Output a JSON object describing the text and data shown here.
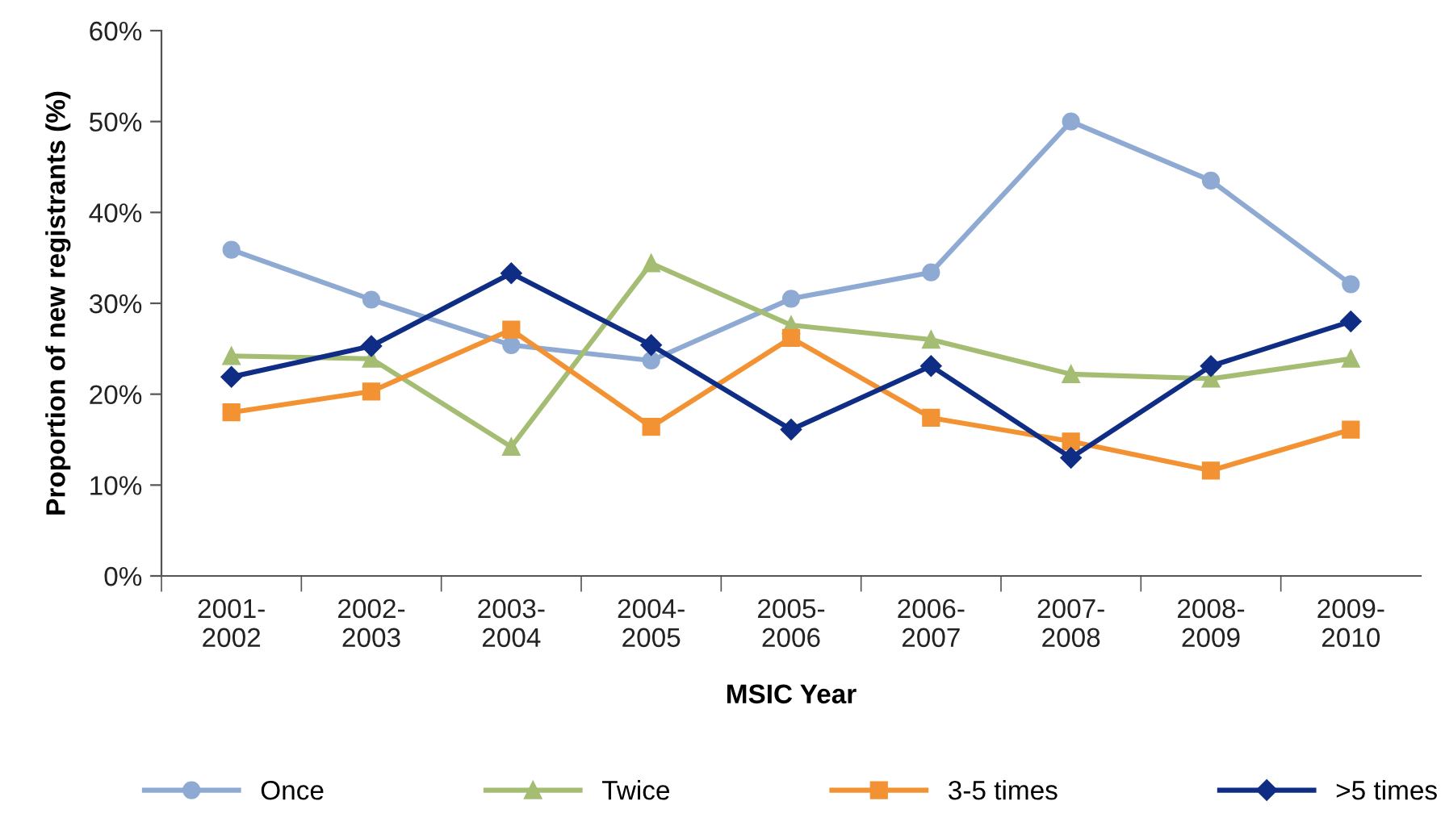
{
  "chart_data": {
    "type": "line",
    "xlabel": "MSIC Year",
    "ylabel": "Proportion of new registrants (%)",
    "categories": [
      "2001-\n2002",
      "2002-\n2003",
      "2003-\n2004",
      "2004-\n2005",
      "2005-\n2006",
      "2006-\n2007",
      "2007-\n2008",
      "2008-\n2009",
      "2009-\n2010"
    ],
    "series": [
      {
        "name": "Once",
        "color": "#8eaad3",
        "marker": "circle",
        "values": [
          35.9,
          30.4,
          25.4,
          23.7,
          30.5,
          33.4,
          50.0,
          43.5,
          32.1
        ]
      },
      {
        "name": "Twice",
        "color": "#a4bd73",
        "marker": "triangle",
        "values": [
          24.2,
          23.9,
          14.2,
          34.4,
          27.6,
          26.0,
          22.2,
          21.7,
          23.9
        ]
      },
      {
        "name": "3-5 times",
        "color": "#f39233",
        "marker": "square",
        "values": [
          18.0,
          20.3,
          27.1,
          16.4,
          26.2,
          17.4,
          14.8,
          11.6,
          16.1
        ]
      },
      {
        "name": ">5 times",
        "color": "#0f2d84",
        "marker": "diamond",
        "values": [
          21.9,
          25.3,
          33.3,
          25.4,
          16.1,
          23.1,
          13.0,
          23.1,
          28.0
        ]
      }
    ],
    "ylim": [
      0,
      60
    ],
    "yticks": [
      {
        "value": 0,
        "label": "0%"
      },
      {
        "value": 10,
        "label": "10%"
      },
      {
        "value": 20,
        "label": "20%"
      },
      {
        "value": 30,
        "label": "30%"
      },
      {
        "value": 40,
        "label": "40%"
      },
      {
        "value": 50,
        "label": "50%"
      },
      {
        "value": 60,
        "label": "60%"
      }
    ],
    "grid": false,
    "legend": "bottom",
    "line_style": "solid"
  }
}
